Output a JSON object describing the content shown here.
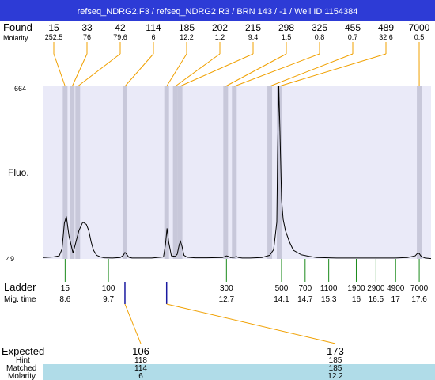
{
  "title": "refseq_NDRG2.F3 / refseq_NDRG2.R3 / BRN 143 / -1 / Well ID 1154384",
  "colors": {
    "title_bg": "#2d3bd6",
    "plot_bg": "#eaeaf8",
    "peak_band": "#c8c8da",
    "found_line": "#f0a000",
    "ladder_line": "#1a8a1a",
    "expected_line": "#f0a000",
    "matched_bg": "#b0dce8",
    "trace": "#000000"
  },
  "found": {
    "label": "Found",
    "molarity_label": "Molarity",
    "sizes": [
      "15",
      "33",
      "42",
      "114",
      "185",
      "202",
      "215",
      "298",
      "325",
      "455",
      "489",
      "7000"
    ],
    "molarities": [
      "252.5",
      "76",
      "79.6",
      "6",
      "12.2",
      "1.2",
      "9.4",
      "1.5",
      "0.8",
      "0.7",
      "32.6",
      "0.5"
    ]
  },
  "yaxis": {
    "label": "Fluo.",
    "max_label": "664",
    "min_label": "49",
    "max": 664,
    "min": 49
  },
  "ladder": {
    "label": "Ladder",
    "mig_label": "Mig. time",
    "sizes": [
      "15",
      "100",
      "300",
      "500",
      "700",
      "1100",
      "1900",
      "2900",
      "4900",
      "7000"
    ],
    "mig_times": [
      "8.6",
      "9.7",
      "12.7",
      "14.1",
      "14.7",
      "15.3",
      "16",
      "16.5",
      "17",
      "17.6"
    ]
  },
  "expected": {
    "label": "Expected",
    "hint_label": "Hint",
    "matched_label": "Matched",
    "molarity_label": "Molarity",
    "items": [
      {
        "expected": "106",
        "hint": "118",
        "matched": "114",
        "molarity": "6"
      },
      {
        "expected": "173",
        "hint": "185",
        "matched": "185",
        "molarity": "12.2"
      }
    ]
  },
  "chart_data": {
    "type": "line",
    "title": "refseq_NDRG2.F3 / refseq_NDRG2.R3 / BRN 143 / -1 / Well ID 1154384",
    "xlabel": "Mig. time",
    "ylabel": "Fluo.",
    "xlim": [
      8.05,
      17.9
    ],
    "ylim": [
      49,
      664
    ],
    "series": [
      {
        "x": [
          8.05,
          8.3,
          8.45,
          8.52,
          8.58,
          8.63,
          8.7,
          8.8,
          8.95,
          9.05,
          9.14,
          9.2,
          9.26,
          9.32,
          9.4,
          9.5,
          9.6,
          9.8,
          10.0,
          10.08,
          10.12,
          10.16,
          10.22,
          10.3,
          10.5,
          10.8,
          11.1,
          11.15,
          11.19,
          11.23,
          11.3,
          11.4,
          11.45,
          11.5,
          11.53,
          11.57,
          11.62,
          11.7,
          11.9,
          12.2,
          12.6,
          12.7,
          12.75,
          12.8,
          12.9,
          12.95,
          13.0,
          13.1,
          13.3,
          13.6,
          13.8,
          13.9,
          13.98,
          14.0,
          14.03,
          14.06,
          14.1,
          14.14,
          14.2,
          14.3,
          14.4,
          14.6,
          14.8,
          15.0,
          15.5,
          16.0,
          16.5,
          17.0,
          17.3,
          17.5,
          17.56,
          17.6,
          17.65,
          17.75,
          17.9
        ],
        "y": [
          54,
          56,
          60,
          84,
          176,
          200,
          130,
          70,
          150,
          180,
          172,
          150,
          110,
          80,
          62,
          56,
          53,
          52,
          54,
          62,
          72,
          66,
          55,
          52,
          52,
          52,
          56,
          100,
          158,
          110,
          60,
          58,
          66,
          100,
          112,
          94,
          62,
          55,
          53,
          53,
          54,
          60,
          58,
          54,
          55,
          58,
          54,
          52,
          52,
          54,
          62,
          82,
          180,
          420,
          664,
          500,
          260,
          190,
          150,
          110,
          80,
          64,
          58,
          54,
          52,
          52,
          52,
          52,
          54,
          60,
          70,
          68,
          58,
          52,
          50
        ]
      }
    ],
    "peaks": {
      "sizes": [
        15,
        33,
        42,
        114,
        185,
        202,
        215,
        298,
        325,
        455,
        489,
        7000
      ],
      "molarities": [
        252.5,
        76,
        79.6,
        6,
        12.2,
        1.2,
        9.4,
        1.5,
        0.8,
        0.7,
        32.6,
        0.5
      ],
      "mig_times": [
        8.6,
        8.78,
        8.92,
        10.12,
        11.18,
        11.4,
        11.52,
        12.68,
        12.9,
        13.8,
        14.04,
        17.6
      ]
    },
    "ladder": {
      "sizes": [
        15,
        100,
        300,
        500,
        700,
        1100,
        1900,
        2900,
        4900,
        7000
      ],
      "mig_times": [
        8.6,
        9.7,
        12.7,
        14.1,
        14.7,
        15.3,
        16,
        16.5,
        17,
        17.6
      ]
    },
    "expected": [
      {
        "expected": 106,
        "hint": 118,
        "matched": 114,
        "molarity": 6,
        "mig_time": 10.12
      },
      {
        "expected": 173,
        "hint": 185,
        "matched": 185,
        "molarity": 12.2,
        "mig_time": 11.18
      }
    ]
  }
}
